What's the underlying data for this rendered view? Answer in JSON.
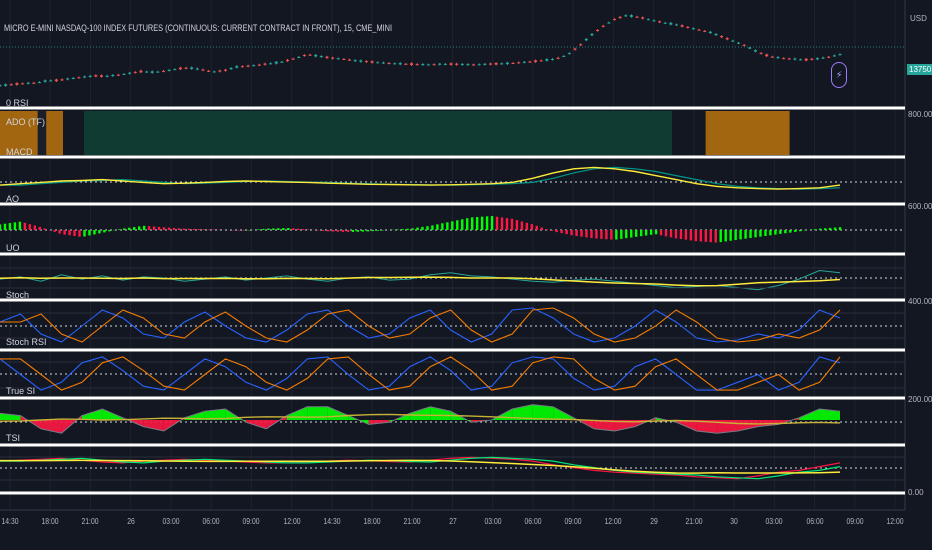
{
  "chart_title": "MICRO E-MINI NASDAQ-100 INDEX FUTURES (CONTINUOUS: CURRENT CONTRACT IN FRONT), 15, CME_MINI",
  "currency_label": "USD",
  "price_tag": "13750",
  "colors": {
    "background": "#131722",
    "up": "#26a69a",
    "down": "#ef5350",
    "yellow": "#ffeb3b",
    "orange": "#f57c00",
    "teal": "#009688",
    "blue": "#2962ff",
    "lime": "#00e676",
    "red": "#ff1744",
    "green_bar": "#00ff00"
  },
  "pane_labels": [
    "0 RSI",
    "ADO (TF)",
    "MACD",
    "AO",
    "UO",
    "Stoch",
    "Stoch RSI",
    "True SI",
    "TSI"
  ],
  "right_axis_labels": [
    "800.00",
    "600.00",
    "400.00",
    "200.00",
    "0.00"
  ],
  "chart_data": {
    "type": "line",
    "x_ticks": [
      "14:30",
      "18:00",
      "21:00",
      "26",
      "03:00",
      "06:00",
      "09:00",
      "12:00",
      "14:30",
      "18:00",
      "21:00",
      "27",
      "03:00",
      "06:00",
      "09:00",
      "12:00",
      "29",
      "21:00",
      "30",
      "03:00",
      "06:00",
      "09:00",
      "12:00"
    ],
    "price_series": [
      12850,
      12862,
      12875,
      12880,
      12905,
      12910,
      12930,
      12945,
      12960,
      12955,
      12970,
      12990,
      13010,
      13000,
      13015,
      13040,
      13050,
      13030,
      13005,
      13020,
      13060,
      13070,
      13085,
      13100,
      13120,
      13160,
      13200,
      13180,
      13160,
      13150,
      13130,
      13120,
      13110,
      13100,
      13095,
      13090,
      13085,
      13090,
      13092,
      13088,
      13085,
      13090,
      13095,
      13100,
      13110,
      13120,
      13135,
      13150,
      13200,
      13300,
      13420,
      13520,
      13600,
      13640,
      13620,
      13590,
      13560,
      13540,
      13510,
      13480,
      13450,
      13400,
      13350,
      13300,
      13230,
      13180,
      13160,
      13150,
      13140,
      13150,
      13170,
      13200
    ],
    "ado_regions": [
      {
        "from": 0.0,
        "to": 0.045,
        "color": "orange"
      },
      {
        "from": 0.045,
        "to": 0.055,
        "color": "dark"
      },
      {
        "from": 0.055,
        "to": 0.075,
        "color": "orange"
      },
      {
        "from": 0.1,
        "to": 0.8,
        "color": "teal"
      },
      {
        "from": 0.84,
        "to": 0.94,
        "color": "orange"
      }
    ],
    "macd": [
      0.35,
      0.4,
      0.45,
      0.5,
      0.52,
      0.55,
      0.5,
      0.45,
      0.4,
      0.42,
      0.45,
      0.48,
      0.5,
      0.48,
      0.46,
      0.45,
      0.42,
      0.4,
      0.38,
      0.37,
      0.36,
      0.35,
      0.36,
      0.38,
      0.4,
      0.45,
      0.6,
      0.8,
      0.95,
      1.0,
      0.95,
      0.85,
      0.7,
      0.55,
      0.4,
      0.3,
      0.25,
      0.22,
      0.2,
      0.22,
      0.25,
      0.35
    ],
    "ao": [
      0.4,
      0.6,
      0.2,
      -0.3,
      -0.5,
      -0.2,
      0.1,
      0.3,
      0.2,
      0.1,
      0.05,
      0.0,
      -0.05,
      0.1,
      0.15,
      0.05,
      -0.1,
      -0.15,
      -0.1,
      0.0,
      0.1,
      0.3,
      0.6,
      0.9,
      1.0,
      0.8,
      0.4,
      -0.1,
      -0.4,
      -0.6,
      -0.7,
      -0.5,
      -0.3,
      -0.6,
      -0.8,
      -0.9,
      -0.7,
      -0.5,
      -0.3,
      -0.1,
      0.1,
      0.2
    ],
    "uo": [
      0.2,
      0.3,
      0.1,
      0.4,
      0.2,
      0.35,
      0.15,
      0.3,
      0.25,
      0.1,
      0.2,
      0.3,
      0.15,
      0.25,
      0.35,
      0.2,
      0.1,
      0.25,
      0.3,
      0.15,
      0.2,
      0.4,
      0.5,
      0.35,
      0.3,
      0.2,
      0.1,
      0.05,
      0.15,
      0.2,
      0.1,
      0.0,
      -0.1,
      -0.2,
      -0.15,
      -0.1,
      -0.2,
      -0.3,
      -0.1,
      0.2,
      0.6,
      0.5
    ],
    "stoch": [
      0.6,
      0.8,
      0.3,
      0.1,
      0.5,
      0.9,
      0.7,
      0.3,
      0.2,
      0.6,
      0.85,
      0.5,
      0.2,
      0.1,
      0.4,
      0.8,
      0.9,
      0.5,
      0.2,
      0.3,
      0.7,
      0.9,
      0.4,
      0.1,
      0.3,
      0.9,
      0.95,
      0.7,
      0.3,
      0.1,
      0.2,
      0.5,
      0.9,
      0.6,
      0.2,
      0.1,
      0.15,
      0.3,
      0.2,
      0.4,
      0.9,
      0.7
    ],
    "stoch_rsi": [
      0.9,
      0.5,
      0.1,
      0.3,
      0.8,
      0.95,
      0.6,
      0.2,
      0.1,
      0.5,
      0.9,
      0.7,
      0.3,
      0.1,
      0.4,
      0.9,
      0.95,
      0.5,
      0.1,
      0.2,
      0.7,
      0.95,
      0.6,
      0.1,
      0.2,
      0.8,
      0.95,
      0.9,
      0.4,
      0.1,
      0.2,
      0.7,
      0.9,
      0.5,
      0.1,
      0.1,
      0.3,
      0.5,
      0.1,
      0.3,
      0.95,
      0.8
    ],
    "true_si": [
      0.3,
      0.2,
      -0.4,
      -0.6,
      0.2,
      0.5,
      0.1,
      -0.3,
      -0.5,
      0.1,
      0.4,
      0.5,
      -0.1,
      -0.4,
      0.2,
      0.6,
      0.6,
      0.2,
      -0.2,
      -0.1,
      0.3,
      0.6,
      0.4,
      -0.1,
      0.0,
      0.5,
      0.7,
      0.6,
      0.1,
      -0.4,
      -0.5,
      -0.3,
      0.1,
      -0.1,
      -0.5,
      -0.6,
      -0.5,
      -0.3,
      -0.2,
      0.1,
      0.5,
      0.4
    ],
    "tsi": [
      0.4,
      0.45,
      0.5,
      0.55,
      0.45,
      0.35,
      0.3,
      0.4,
      0.45,
      0.5,
      0.45,
      0.4,
      0.35,
      0.3,
      0.3,
      0.35,
      0.4,
      0.45,
      0.42,
      0.38,
      0.35,
      0.45,
      0.55,
      0.6,
      0.55,
      0.5,
      0.4,
      0.2,
      0.05,
      -0.1,
      -0.2,
      -0.25,
      -0.3,
      -0.35,
      -0.45,
      -0.5,
      -0.55,
      -0.4,
      -0.2,
      -0.1,
      0.1,
      0.3
    ]
  }
}
